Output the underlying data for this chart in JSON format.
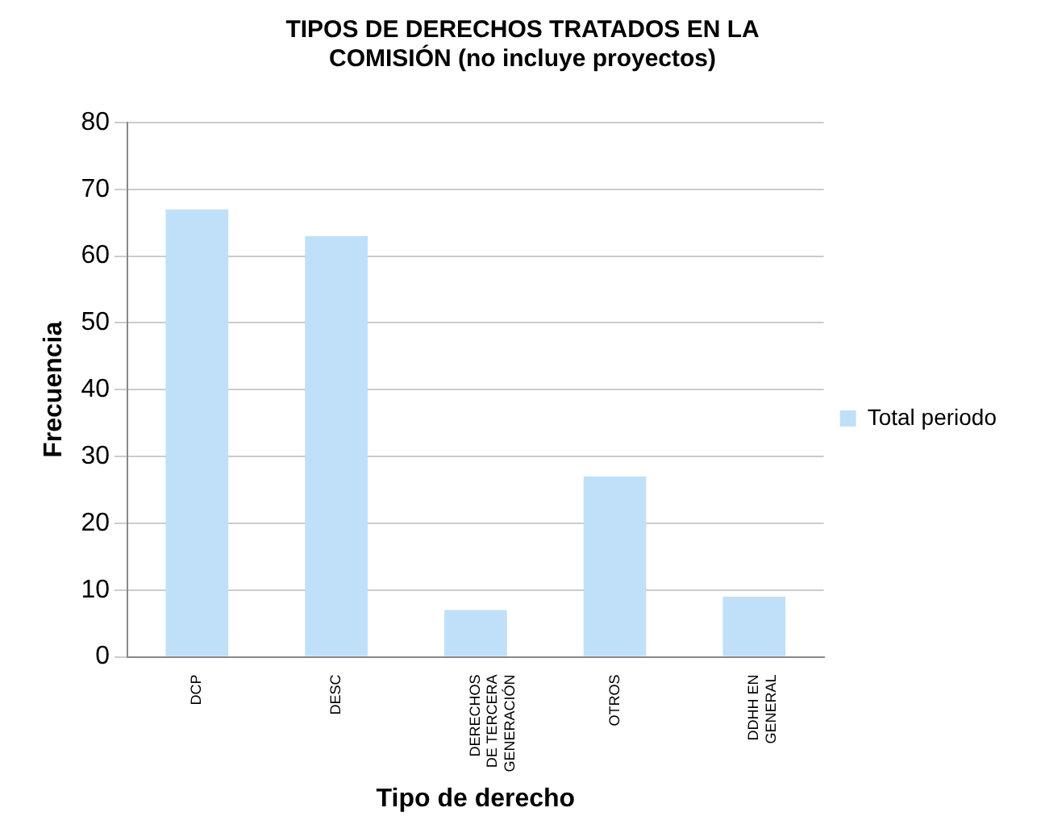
{
  "chart_data": {
    "type": "bar",
    "title": "TIPOS DE DERECHOS TRATADOS EN LA COMISIÓN (no incluye proyectos)",
    "xlabel": "Tipo de derecho",
    "ylabel": "Frecuencia",
    "categories": [
      "DCP",
      "DESC",
      "DERECHOS DE TERCERA GENERACIÓN",
      "OTROS",
      "DDHH EN GENERAL"
    ],
    "series": [
      {
        "name": "Total periodo",
        "color": "#bfe0f8",
        "values": [
          67,
          63,
          7,
          27,
          9
        ]
      }
    ],
    "ylim": [
      0,
      80
    ],
    "yticks": [
      0,
      10,
      20,
      30,
      40,
      50,
      60,
      70,
      80
    ],
    "grid": "y",
    "legend": "right"
  }
}
